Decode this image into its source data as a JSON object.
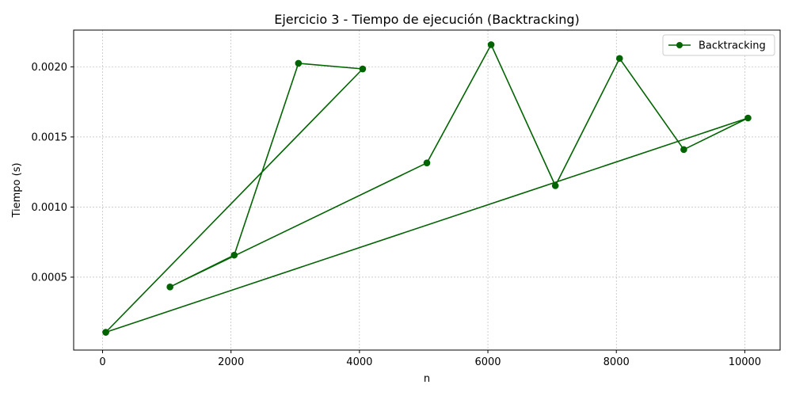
{
  "chart_data": {
    "type": "line",
    "title": "Ejercicio 3 - Tiempo de ejecución (Backtracking)",
    "xlabel": "n",
    "ylabel": "Tiempo (s)",
    "xlim": [
      -450,
      10550
    ],
    "ylim": [
      -2e-05,
      0.002262
    ],
    "xticks": [
      0,
      2000,
      4000,
      6000,
      8000,
      10000
    ],
    "xtick_labels": [
      "0",
      "2000",
      "4000",
      "6000",
      "8000",
      "10000"
    ],
    "yticks": [
      0.0005,
      0.001,
      0.0015,
      0.002
    ],
    "ytick_labels": [
      "0.0005",
      "0.0010",
      "0.0015",
      "0.0020"
    ],
    "grid": true,
    "legend_position": "upper right",
    "series": [
      {
        "name": "Backtracking",
        "color": "#006400",
        "marker": "circle",
        "x": [
          50,
          4050,
          3050,
          2050,
          1050,
          5050,
          6050,
          7050,
          8050,
          9050,
          10050,
          50
        ],
        "y": [
          0.000107,
          0.001985,
          0.002025,
          0.000657,
          0.00043,
          0.001315,
          0.002158,
          0.001152,
          0.00206,
          0.00141,
          0.001635,
          0.000107
        ]
      }
    ]
  }
}
